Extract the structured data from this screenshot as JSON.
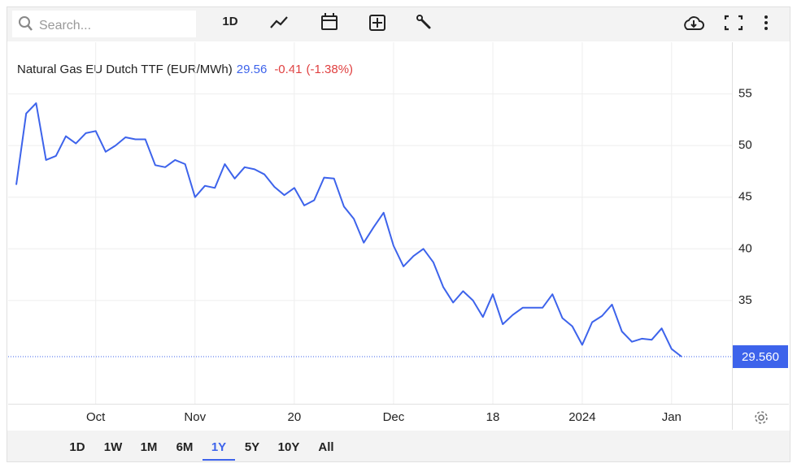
{
  "toolbar": {
    "search_placeholder": "Search...",
    "interval": "1D"
  },
  "header": {
    "price": "29.56",
    "change": "-0.41",
    "change_pct": "(-1.38%)"
  },
  "ranges": [
    "1D",
    "1W",
    "1M",
    "6M",
    "1Y",
    "5Y",
    "10Y",
    "All"
  ],
  "selected_range": 4,
  "chart_data": {
    "type": "line",
    "title": "Natural Gas EU Dutch TTF (EUR/MWh)",
    "color": "#3d63eb",
    "categories": [
      null,
      null,
      null,
      null,
      null,
      null,
      null,
      null,
      "Oct",
      null,
      null,
      null,
      null,
      null,
      null,
      null,
      null,
      null,
      "Nov",
      null,
      null,
      null,
      null,
      null,
      null,
      null,
      null,
      null,
      "20",
      null,
      null,
      null,
      null,
      null,
      null,
      null,
      null,
      null,
      "Dec",
      null,
      null,
      null,
      null,
      null,
      null,
      null,
      null,
      null,
      "18",
      null,
      null,
      null,
      null,
      null,
      null,
      null,
      null,
      "2024",
      null,
      null,
      null,
      null,
      null,
      null,
      null,
      null,
      "Jan",
      null
    ],
    "values": [
      46.2,
      53.1,
      54.1,
      48.6,
      49.0,
      50.9,
      50.2,
      51.2,
      51.4,
      49.4,
      50.0,
      50.8,
      50.6,
      50.6,
      48.1,
      47.9,
      48.6,
      48.2,
      45.0,
      46.1,
      45.9,
      48.2,
      46.8,
      47.9,
      47.7,
      47.2,
      46.0,
      45.2,
      45.9,
      44.2,
      44.7,
      46.9,
      46.8,
      44.1,
      42.9,
      40.6,
      42.1,
      43.5,
      40.3,
      38.3,
      39.3,
      40.0,
      38.7,
      36.3,
      34.8,
      35.9,
      35.0,
      33.4,
      35.6,
      32.7,
      33.6,
      34.3,
      34.3,
      34.3,
      35.6,
      33.3,
      32.5,
      30.7,
      32.9,
      33.5,
      34.6,
      32.0,
      31.0,
      31.3,
      31.2,
      32.3,
      30.3,
      29.56
    ],
    "last_value_label": "29.560",
    "ylim": [
      25,
      60
    ],
    "yticks": [
      35,
      40,
      45,
      50,
      55
    ],
    "grid": true
  }
}
